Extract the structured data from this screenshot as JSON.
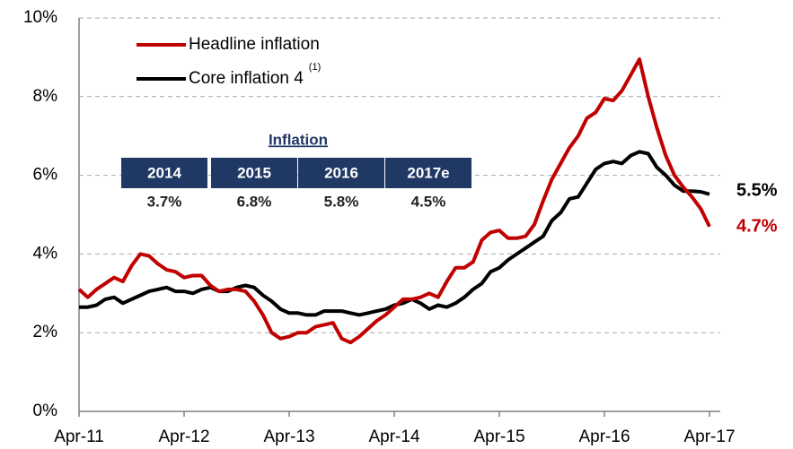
{
  "chart_data": {
    "type": "line",
    "categories": [
      "Apr-11",
      null,
      null,
      null,
      null,
      null,
      null,
      null,
      null,
      null,
      null,
      null,
      "Apr-12",
      null,
      null,
      null,
      null,
      null,
      null,
      null,
      null,
      null,
      null,
      null,
      "Apr-13",
      null,
      null,
      null,
      null,
      null,
      null,
      null,
      null,
      null,
      null,
      null,
      "Apr-14",
      null,
      null,
      null,
      null,
      null,
      null,
      null,
      null,
      null,
      null,
      null,
      "Apr-15",
      null,
      null,
      null,
      null,
      null,
      null,
      null,
      null,
      null,
      null,
      null,
      "Apr-16",
      null,
      null,
      null,
      null,
      null,
      null,
      null,
      null,
      null,
      null,
      null,
      "Apr-17"
    ],
    "series": [
      {
        "name": "Headline inflation",
        "color": "#c00000",
        "end_label": "4.7%",
        "values": [
          3.1,
          2.9,
          3.1,
          3.25,
          3.4,
          3.3,
          3.7,
          4.0,
          3.95,
          3.75,
          3.6,
          3.55,
          3.4,
          3.45,
          3.45,
          3.2,
          3.05,
          3.1,
          3.1,
          3.05,
          2.8,
          2.45,
          2.0,
          1.85,
          1.9,
          2.0,
          2.0,
          2.15,
          2.2,
          2.25,
          1.85,
          1.75,
          1.9,
          2.1,
          2.3,
          2.45,
          2.65,
          2.85,
          2.85,
          2.9,
          3.0,
          2.9,
          3.3,
          3.65,
          3.65,
          3.8,
          4.35,
          4.55,
          4.6,
          4.4,
          4.4,
          4.45,
          4.75,
          5.35,
          5.9,
          6.3,
          6.7,
          7.0,
          7.45,
          7.6,
          7.95,
          7.9,
          8.15,
          8.55,
          8.95,
          8.0,
          7.2,
          6.5,
          6.0,
          5.7,
          5.45,
          5.15,
          4.7
        ]
      },
      {
        "name": "Core inflation 4",
        "superscript": "(1)",
        "color": "#000000",
        "end_label": "5.5%",
        "values": [
          2.65,
          2.65,
          2.7,
          2.85,
          2.9,
          2.75,
          2.85,
          2.95,
          3.05,
          3.1,
          3.15,
          3.05,
          3.05,
          3.0,
          3.1,
          3.15,
          3.05,
          3.05,
          3.15,
          3.2,
          3.15,
          2.95,
          2.8,
          2.6,
          2.5,
          2.5,
          2.45,
          2.45,
          2.55,
          2.55,
          2.55,
          2.5,
          2.45,
          2.5,
          2.55,
          2.6,
          2.7,
          2.75,
          2.85,
          2.75,
          2.6,
          2.7,
          2.65,
          2.75,
          2.9,
          3.1,
          3.25,
          3.55,
          3.65,
          3.85,
          4.0,
          4.15,
          4.3,
          4.45,
          4.85,
          5.05,
          5.4,
          5.45,
          5.8,
          6.15,
          6.3,
          6.35,
          6.3,
          6.5,
          6.6,
          6.55,
          6.2,
          6.0,
          5.75,
          5.6,
          5.6,
          5.58,
          5.52
        ]
      }
    ],
    "ylim": [
      0,
      10
    ],
    "yticks": [
      {
        "value": 0,
        "label": "0%"
      },
      {
        "value": 2,
        "label": "2%"
      },
      {
        "value": 4,
        "label": "4%"
      },
      {
        "value": 6,
        "label": "6%"
      },
      {
        "value": 8,
        "label": "8%"
      },
      {
        "value": 10,
        "label": "10%"
      }
    ],
    "grid": true,
    "table": {
      "title": "Inflation",
      "headers": [
        "2014",
        "2015",
        "2016",
        "2017e"
      ],
      "values": [
        "3.7%",
        "6.8%",
        "5.8%",
        "4.5%"
      ]
    }
  }
}
